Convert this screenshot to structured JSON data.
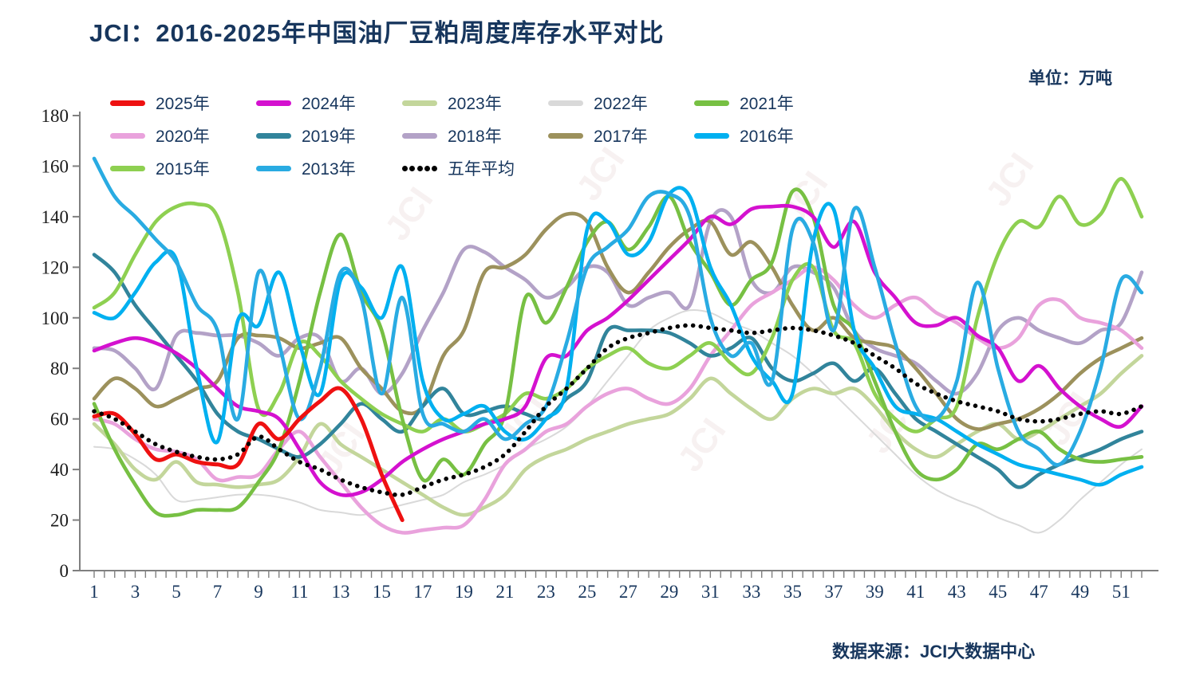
{
  "title": "JCI：2016-2025年中国油厂豆粕周度库存水平对比",
  "unit_label": "单位：万吨",
  "source_label": "数据来源：JCI大数据中心",
  "watermark_text": "JCI",
  "colors": {
    "title_navy": "#17365D",
    "axis_gray": "#808080",
    "background": "#ffffff"
  },
  "chart_data": {
    "type": "line",
    "title": "JCI：2016-2025年中国油厂豆粕周度库存水平对比",
    "unit": "万吨",
    "x": [
      1,
      2,
      3,
      4,
      5,
      6,
      7,
      8,
      9,
      10,
      11,
      12,
      13,
      14,
      15,
      16,
      17,
      18,
      19,
      20,
      21,
      22,
      23,
      24,
      25,
      26,
      27,
      28,
      29,
      30,
      31,
      32,
      33,
      34,
      35,
      36,
      37,
      38,
      39,
      40,
      41,
      42,
      43,
      44,
      45,
      46,
      47,
      48,
      49,
      50,
      51,
      52
    ],
    "x_tick_labels": [
      1,
      3,
      5,
      7,
      9,
      11,
      13,
      15,
      17,
      19,
      21,
      23,
      25,
      27,
      29,
      31,
      33,
      35,
      37,
      39,
      41,
      43,
      45,
      47,
      49,
      51
    ],
    "ylim": [
      0,
      180
    ],
    "y_ticks": [
      0,
      20,
      40,
      60,
      80,
      100,
      120,
      140,
      160,
      180
    ],
    "grid": false,
    "legend_position": "top",
    "legend_rows": [
      [
        "2025年",
        "2024年",
        "2023年",
        "2022年",
        "2021年"
      ],
      [
        "2020年",
        "2019年",
        "2018年",
        "2017年",
        "2016年"
      ],
      [
        "2015年",
        "2013年",
        "五年平均"
      ]
    ],
    "draw_order": [
      "2022年",
      "2023年",
      "2018年",
      "2017年",
      "2020年",
      "2019年",
      "2015年",
      "2021年",
      "2024年",
      "2016年",
      "2013年",
      "2025年",
      "五年平均"
    ],
    "series": [
      {
        "name": "2025年",
        "color": "#EE1111",
        "style": "solid",
        "width": 5,
        "values": [
          61,
          62,
          54,
          44,
          46,
          43,
          42,
          42,
          58,
          52,
          60,
          67,
          72,
          60,
          38,
          20
        ]
      },
      {
        "name": "2024年",
        "color": "#D411CF",
        "style": "solid",
        "width": 4.6,
        "values": [
          87,
          90,
          92,
          90,
          86,
          80,
          72,
          65,
          63,
          60,
          48,
          35,
          30,
          31,
          36,
          43,
          48,
          52,
          55,
          58,
          60,
          65,
          84,
          85,
          95,
          100,
          107,
          115,
          123,
          131,
          140,
          137,
          143,
          144,
          144,
          140,
          128,
          138,
          118,
          108,
          98,
          97,
          100,
          93,
          88,
          75,
          81,
          72,
          65,
          60,
          57,
          65
        ]
      },
      {
        "name": "2023年",
        "color": "#C3D69B",
        "style": "solid",
        "width": 4.6,
        "values": [
          58,
          50,
          40,
          36,
          43,
          35,
          34,
          33,
          34,
          36,
          45,
          58,
          50,
          45,
          40,
          35,
          30,
          25,
          22,
          25,
          30,
          40,
          45,
          48,
          52,
          55,
          58,
          60,
          62,
          68,
          76,
          70,
          64,
          60,
          68,
          72,
          70,
          72,
          65,
          55,
          48,
          45,
          50,
          55,
          58,
          52,
          55,
          60,
          65,
          70,
          78,
          85
        ]
      },
      {
        "name": "2022年",
        "color": "#D9D9D9",
        "style": "solid",
        "width": 2,
        "values": [
          49,
          48,
          44,
          38,
          28,
          28,
          29,
          30,
          30,
          29,
          27,
          24,
          23,
          22,
          24,
          26,
          28,
          30,
          35,
          38,
          42,
          48,
          52,
          57,
          65,
          75,
          85,
          95,
          100,
          103,
          102,
          98,
          95,
          90,
          85,
          78,
          70,
          62,
          54,
          46,
          38,
          32,
          28,
          25,
          21,
          18,
          15,
          20,
          28,
          35,
          42,
          48
        ]
      },
      {
        "name": "2021年",
        "color": "#77C043",
        "style": "solid",
        "width": 4.6,
        "values": [
          66,
          48,
          34,
          23,
          22,
          24,
          24,
          25,
          35,
          48,
          75,
          110,
          133,
          110,
          95,
          60,
          36,
          44,
          38,
          50,
          62,
          108,
          98,
          112,
          130,
          138,
          127,
          136,
          148,
          130,
          118,
          105,
          115,
          122,
          150,
          140,
          105,
          95,
          75,
          55,
          40,
          36,
          40,
          50,
          48,
          52,
          55,
          48,
          44,
          43,
          44,
          45
        ]
      },
      {
        "name": "2020年",
        "color": "#E9A2DC",
        "style": "solid",
        "width": 4.6,
        "values": [
          60,
          58,
          52,
          48,
          47,
          44,
          36,
          37,
          38,
          48,
          55,
          45,
          35,
          25,
          18,
          15,
          16,
          17,
          18,
          28,
          42,
          48,
          55,
          58,
          65,
          70,
          72,
          68,
          66,
          72,
          85,
          95,
          105,
          110,
          115,
          120,
          115,
          105,
          100,
          105,
          108,
          102,
          98,
          92,
          88,
          92,
          105,
          107,
          100,
          98,
          95,
          88
        ]
      },
      {
        "name": "2019年",
        "color": "#31849B",
        "style": "solid",
        "width": 4.6,
        "values": [
          125,
          118,
          105,
          95,
          85,
          75,
          62,
          55,
          52,
          48,
          45,
          50,
          58,
          66,
          60,
          55,
          65,
          72,
          62,
          63,
          65,
          62,
          60,
          68,
          75,
          95,
          95,
          95,
          94,
          90,
          85,
          88,
          92,
          80,
          75,
          78,
          82,
          75,
          80,
          70,
          60,
          55,
          50,
          45,
          40,
          33,
          38,
          42,
          45,
          48,
          52,
          55
        ]
      },
      {
        "name": "2018年",
        "color": "#B3A2C7",
        "style": "solid",
        "width": 4.6,
        "values": [
          88,
          87,
          80,
          72,
          93,
          94,
          93,
          93,
          90,
          85,
          92,
          92,
          75,
          80,
          70,
          78,
          95,
          110,
          127,
          126,
          120,
          115,
          108,
          112,
          120,
          118,
          105,
          108,
          110,
          105,
          138,
          140,
          115,
          110,
          120,
          118,
          112,
          95,
          88,
          85,
          82,
          75,
          70,
          78,
          95,
          100,
          95,
          92,
          90,
          95,
          98,
          118
        ]
      },
      {
        "name": "2017年",
        "color": "#9C915C",
        "style": "solid",
        "width": 4.6,
        "values": [
          68,
          76,
          72,
          65,
          68,
          72,
          75,
          92,
          93,
          92,
          88,
          90,
          92,
          80,
          72,
          63,
          65,
          85,
          95,
          118,
          120,
          125,
          135,
          141,
          138,
          120,
          110,
          118,
          128,
          135,
          138,
          125,
          130,
          120,
          105,
          95,
          100,
          92,
          90,
          88,
          80,
          70,
          60,
          56,
          58,
          60,
          64,
          70,
          78,
          84,
          88,
          92
        ]
      },
      {
        "name": "2016年",
        "color": "#00B0F0",
        "style": "solid",
        "width": 4.6,
        "values": [
          102,
          100,
          110,
          122,
          123,
          80,
          51,
          99,
          97,
          118,
          90,
          70,
          115,
          112,
          100,
          120,
          75,
          60,
          62,
          65,
          55,
          52,
          60,
          72,
          135,
          138,
          125,
          130,
          149,
          148,
          120,
          105,
          85,
          75,
          70,
          130,
          143,
          95,
          80,
          65,
          62,
          60,
          55,
          50,
          46,
          42,
          40,
          38,
          36,
          34,
          38,
          41
        ]
      },
      {
        "name": "2015年",
        "color": "#8ED051",
        "style": "solid",
        "width": 4.6,
        "values": [
          104,
          110,
          125,
          138,
          144,
          145,
          140,
          110,
          64,
          70,
          90,
          85,
          75,
          68,
          62,
          58,
          55,
          60,
          55,
          58,
          62,
          70,
          68,
          72,
          80,
          85,
          88,
          82,
          80,
          85,
          90,
          82,
          78,
          92,
          115,
          120,
          95,
          90,
          70,
          60,
          55,
          60,
          65,
          100,
          125,
          138,
          136,
          148,
          137,
          141,
          155,
          140
        ]
      },
      {
        "name": "2013年",
        "color": "#29ABE2",
        "style": "solid",
        "width": 4.6,
        "values": [
          163,
          148,
          140,
          131,
          122,
          105,
          95,
          60,
          118,
          90,
          60,
          80,
          118,
          108,
          70,
          108,
          62,
          58,
          55,
          60,
          52,
          58,
          65,
          90,
          120,
          128,
          135,
          148,
          149,
          140,
          100,
          85,
          90,
          75,
          135,
          130,
          95,
          143,
          120,
          90,
          65,
          60,
          75,
          114,
          80,
          55,
          48,
          42,
          55,
          80,
          115,
          110
        ]
      },
      {
        "name": "五年平均",
        "color": "#000000",
        "style": "dotted",
        "width": 5.5,
        "values": [
          63,
          60,
          55,
          50,
          47,
          45,
          44,
          46,
          53,
          48,
          43,
          40,
          36,
          33,
          31,
          30,
          33,
          36,
          38,
          41,
          46,
          55,
          65,
          72,
          80,
          88,
          92,
          94,
          96,
          97,
          96,
          95,
          94,
          95,
          96,
          95,
          93,
          90,
          85,
          80,
          74,
          70,
          67,
          65,
          63,
          60,
          59,
          60,
          62,
          63,
          62,
          65
        ]
      }
    ]
  }
}
